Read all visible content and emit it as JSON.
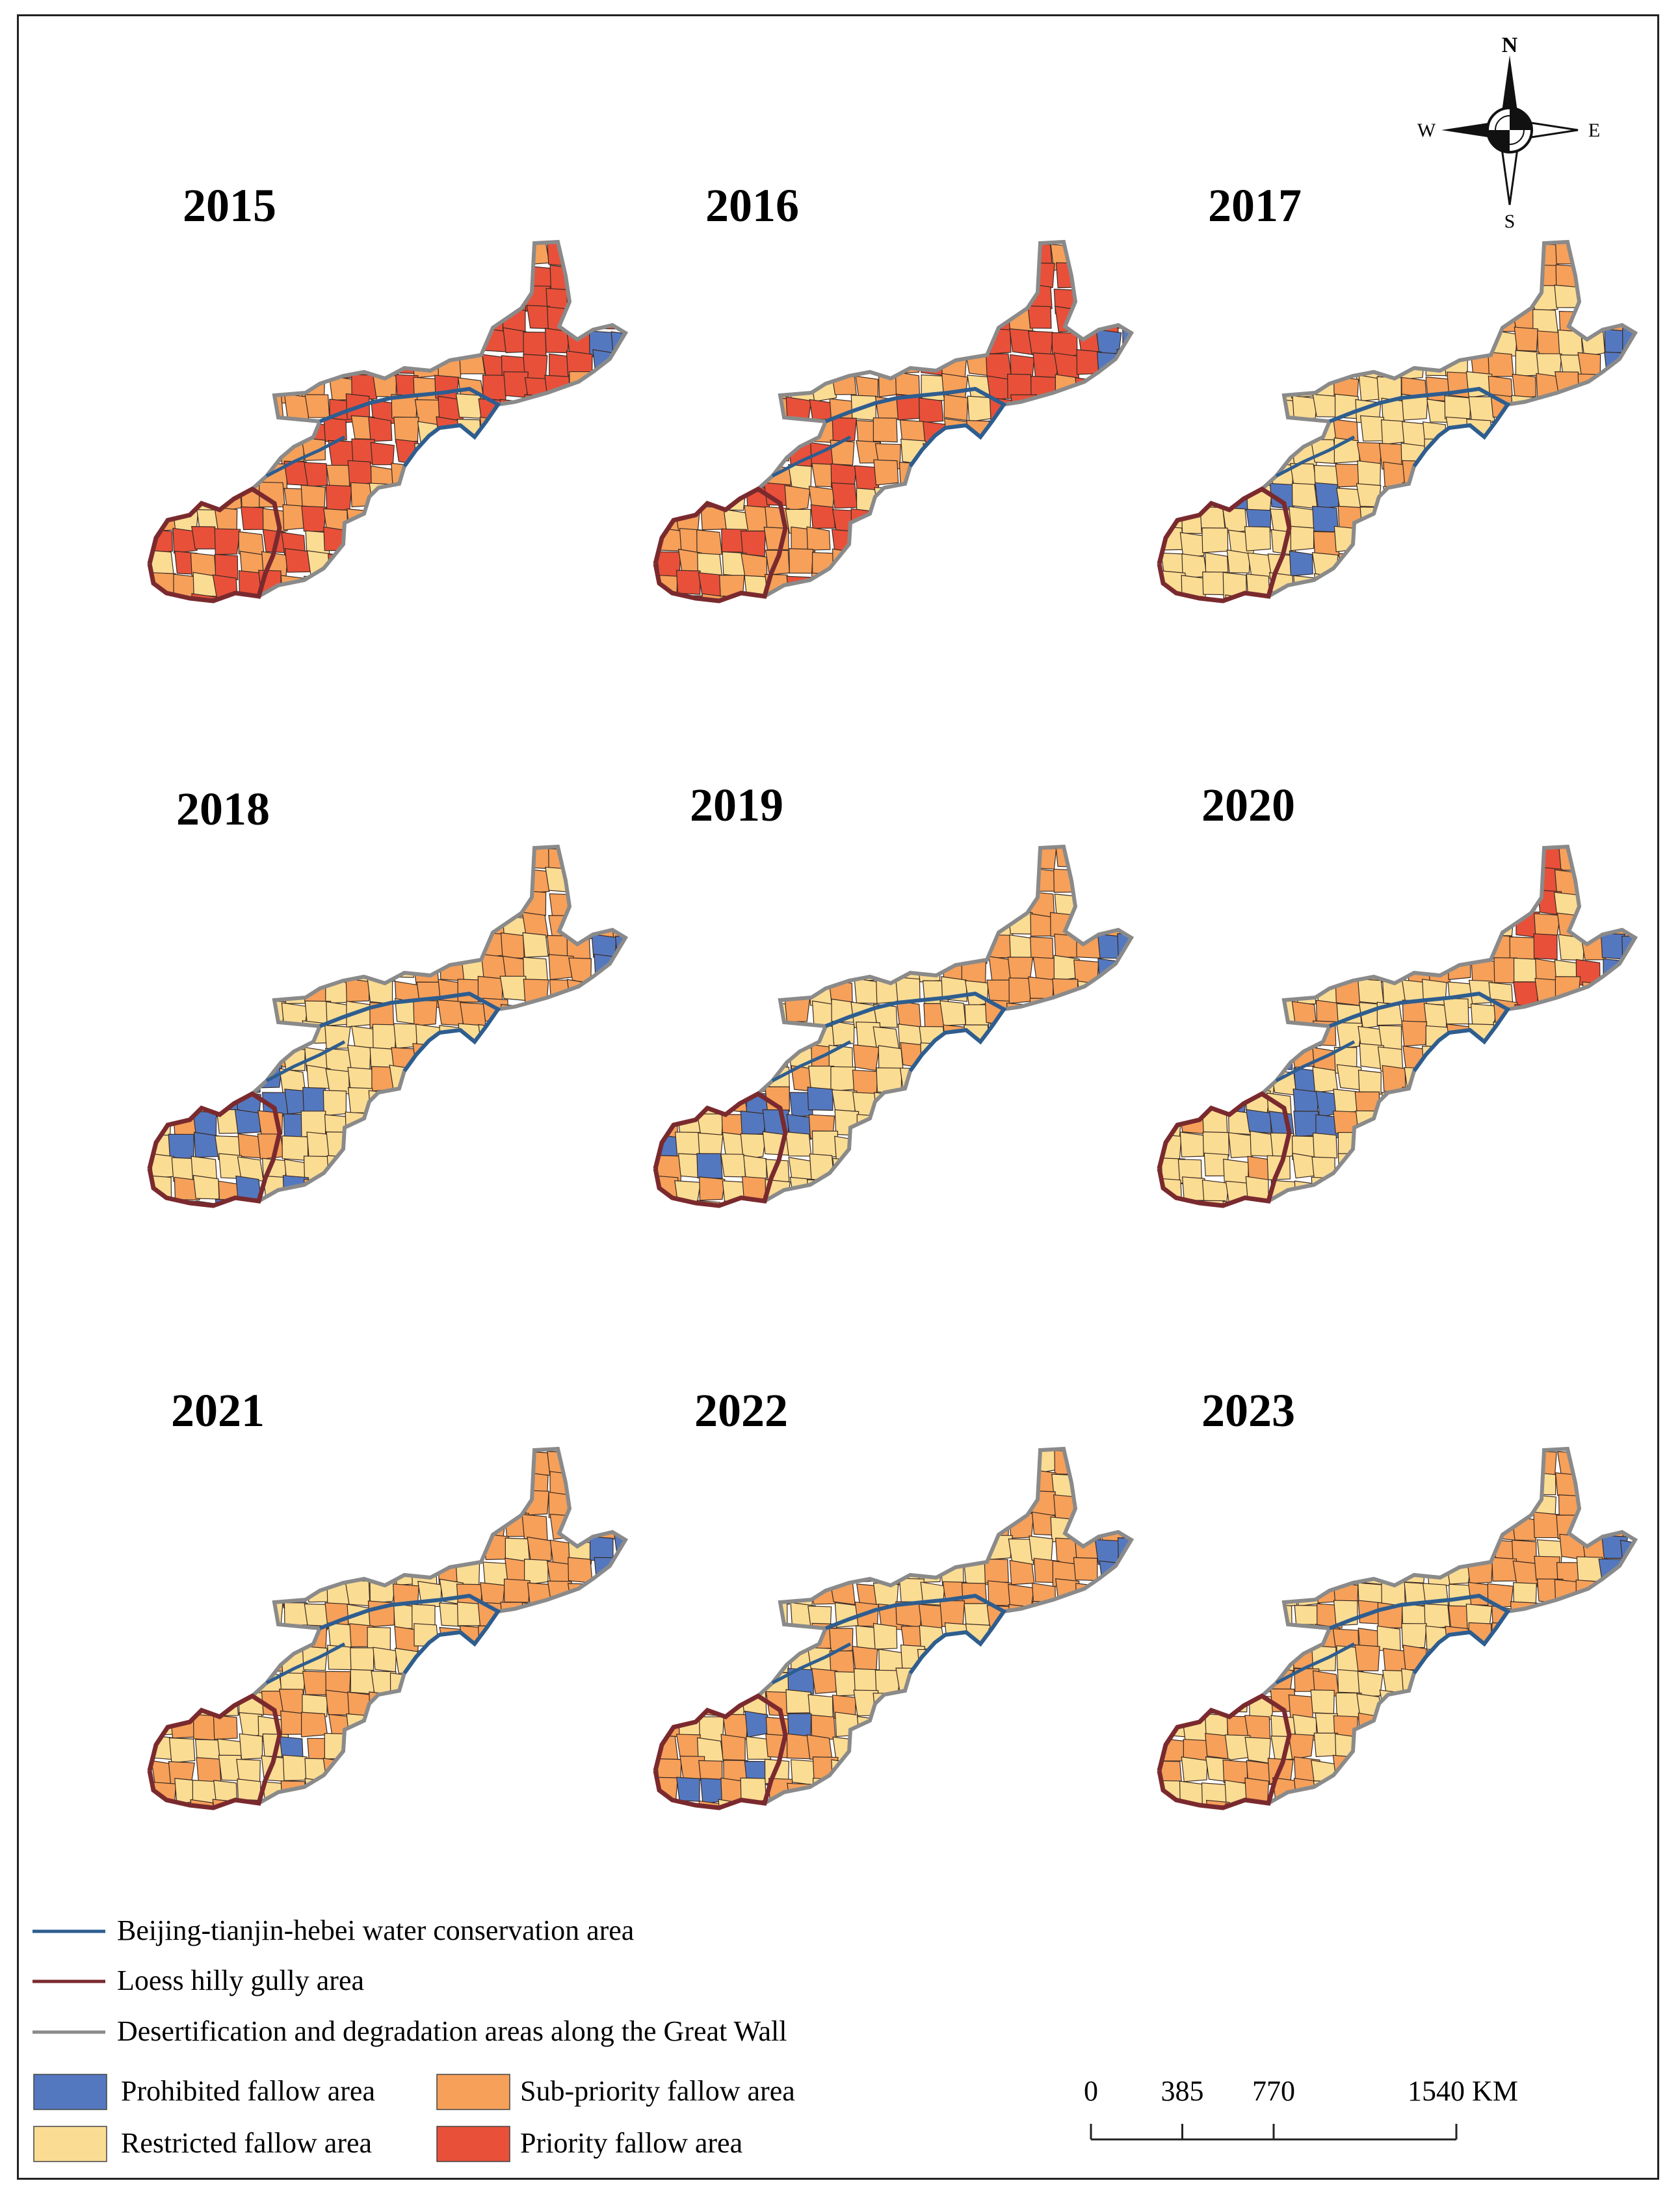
{
  "panels": [
    {
      "year": "2015",
      "scheme": "y2015"
    },
    {
      "year": "2016",
      "scheme": "y2016"
    },
    {
      "year": "2017",
      "scheme": "y2017"
    },
    {
      "year": "2018",
      "scheme": "y2018"
    },
    {
      "year": "2019",
      "scheme": "y2019"
    },
    {
      "year": "2020",
      "scheme": "y2020"
    },
    {
      "year": "2021",
      "scheme": "y2021"
    },
    {
      "year": "2022",
      "scheme": "y2022"
    },
    {
      "year": "2023",
      "scheme": "y2023"
    }
  ],
  "compass": {
    "north": "N",
    "south": "S",
    "east": "E",
    "west": "W",
    "icon": "north-arrow-compass-icon"
  },
  "legend": {
    "lines": [
      {
        "label": "Beijing-tianjin-hebei water conservation area",
        "color": "#2e5d8f"
      },
      {
        "label": "Loess hilly gully area",
        "color": "#7a2a2e"
      },
      {
        "label": "Desertification and degradation areas along the Great Wall",
        "color": "#8a8a8a"
      }
    ],
    "classes": [
      {
        "label": "Prohibited fallow area",
        "color": "#5478c0"
      },
      {
        "label": "Sub-priority fallow area",
        "color": "#f6a05a"
      },
      {
        "label": "Restricted fallow area",
        "color": "#fbdc93"
      },
      {
        "label": "Priority fallow area",
        "color": "#e8503a"
      }
    ]
  },
  "scale_bar": {
    "ticks": [
      "0",
      "385",
      "770",
      "1540 KM"
    ],
    "values": [
      0,
      385,
      770,
      1540
    ]
  }
}
